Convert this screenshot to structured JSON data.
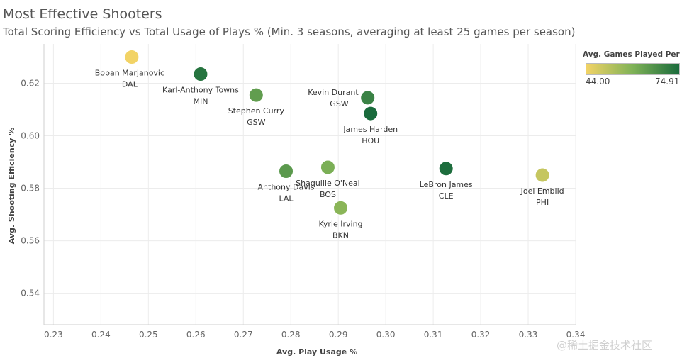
{
  "header": {
    "title": "Most Effective Shooters",
    "subtitle": "Total Scoring Efficiency vs Total Usage of Plays % (Min. 3 seasons, averaging at least 25 games per season)"
  },
  "legend": {
    "title": "Avg. Games Played Per ...",
    "min_label": "44.00",
    "max_label": "74.91",
    "min_color": "#f2d366",
    "mid_color": "#7fb257",
    "max_color": "#1a6b3c"
  },
  "watermark": "@稀土掘金技术社区",
  "chart_data": {
    "type": "scatter",
    "title": "Most Effective Shooters",
    "xlabel": "Avg. Play Usage %",
    "ylabel": "Avg. Shooting Efficiency %",
    "xlim": [
      0.228,
      0.34
    ],
    "ylim": [
      0.528,
      0.635
    ],
    "xticks": [
      "0.23",
      "0.24",
      "0.25",
      "0.26",
      "0.27",
      "0.28",
      "0.29",
      "0.30",
      "0.31",
      "0.32",
      "0.33",
      "0.34"
    ],
    "xtick_values": [
      0.23,
      0.24,
      0.25,
      0.26,
      0.27,
      0.28,
      0.29,
      0.3,
      0.31,
      0.32,
      0.33,
      0.34
    ],
    "yticks": [
      "0.54",
      "0.56",
      "0.58",
      "0.60",
      "0.62"
    ],
    "ytick_values": [
      0.54,
      0.56,
      0.58,
      0.6,
      0.62
    ],
    "color_range": [
      44.0,
      74.91
    ],
    "points": [
      {
        "name": "Boban Marjanovic",
        "team": "DAL",
        "x": 0.2465,
        "y": 0.63,
        "games": 44.0,
        "label_pos": "below-left"
      },
      {
        "name": "Karl-Anthony Towns",
        "team": "MIN",
        "x": 0.261,
        "y": 0.6235,
        "games": 73.0,
        "label_pos": "below"
      },
      {
        "name": "Stephen Curry",
        "team": "GSW",
        "x": 0.2727,
        "y": 0.6155,
        "games": 64.0,
        "label_pos": "below"
      },
      {
        "name": "Kevin Durant",
        "team": "GSW",
        "x": 0.2962,
        "y": 0.6145,
        "games": 70.0,
        "label_pos": "left"
      },
      {
        "name": "James Harden",
        "team": "HOU",
        "x": 0.2968,
        "y": 0.6085,
        "games": 74.91,
        "label_pos": "below"
      },
      {
        "name": "Anthony Davis",
        "team": "LAL",
        "x": 0.279,
        "y": 0.5865,
        "games": 65.0,
        "label_pos": "below"
      },
      {
        "name": "Shaquille O'Neal",
        "team": "BOS",
        "x": 0.2878,
        "y": 0.588,
        "games": 60.0,
        "label_pos": "below"
      },
      {
        "name": "Kyrie Irving",
        "team": "BKN",
        "x": 0.2905,
        "y": 0.5725,
        "games": 58.0,
        "label_pos": "below"
      },
      {
        "name": "LeBron James",
        "team": "CLE",
        "x": 0.3127,
        "y": 0.5875,
        "games": 74.5,
        "label_pos": "below"
      },
      {
        "name": "Joel Embiid",
        "team": "PHI",
        "x": 0.333,
        "y": 0.585,
        "games": 50.0,
        "label_pos": "below"
      }
    ]
  }
}
